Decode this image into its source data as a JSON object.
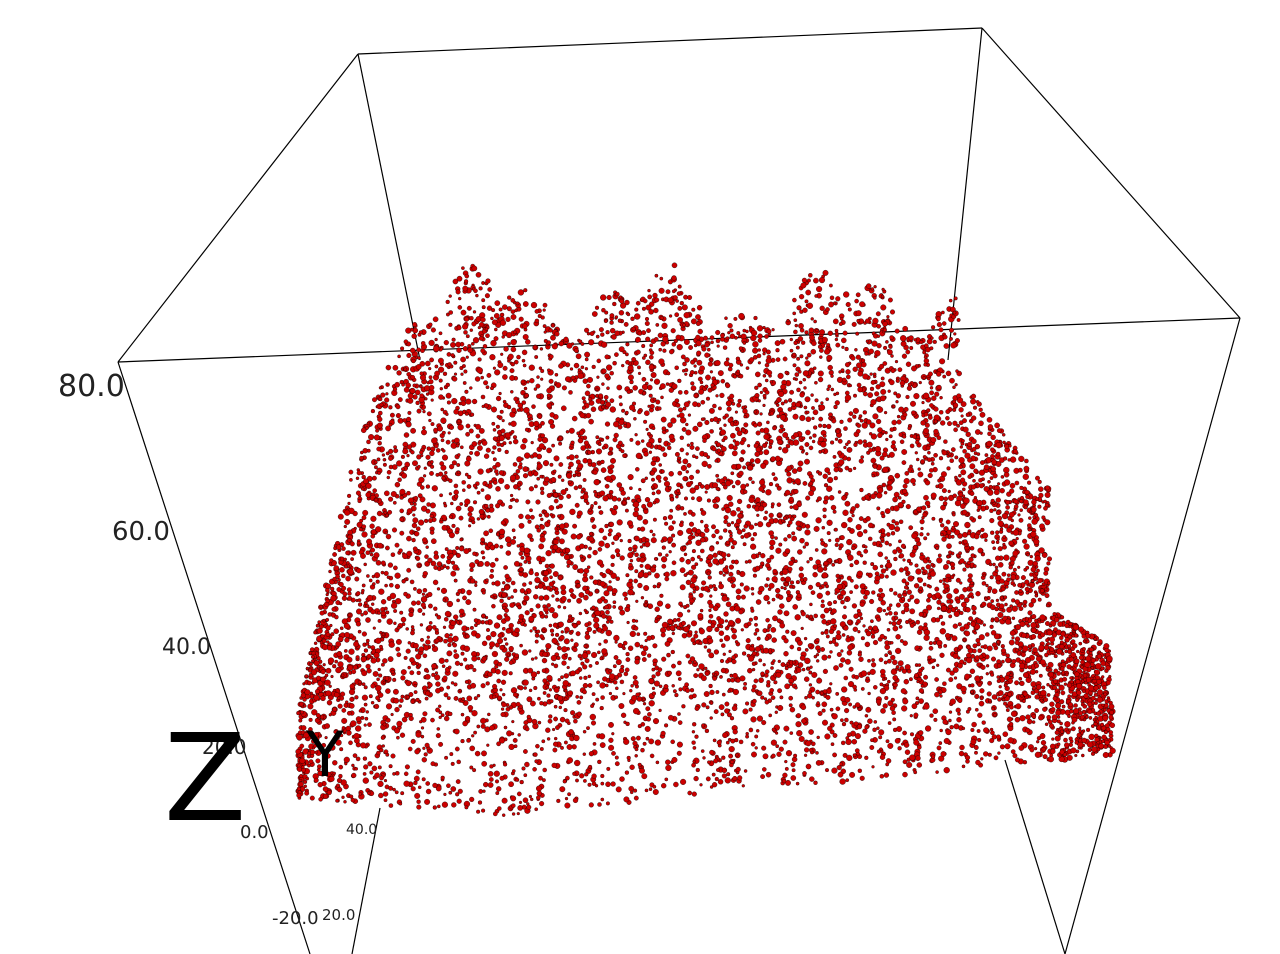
{
  "chart_data": {
    "type": "scatter",
    "projection": "3d",
    "colors": {
      "point_fill": "#cc0000",
      "point_edge": "#000000",
      "frame": "#000000",
      "background": "#ffffff"
    },
    "axes": {
      "z": {
        "label": "Z",
        "ticks": [
          "-20.0",
          "0.0",
          "20.0",
          "40.0",
          "60.0",
          "80.0"
        ],
        "range": [
          -20,
          80
        ]
      },
      "y": {
        "label": "Y",
        "ticks": [
          "20.0",
          "40.0"
        ]
      }
    },
    "grid": false,
    "legend": "none",
    "point_cloud": {
      "description_shape": "dense red scattered point cloud with black outlines, forest-canopy like surface",
      "approx_extent_z": [
        5,
        65
      ]
    }
  }
}
